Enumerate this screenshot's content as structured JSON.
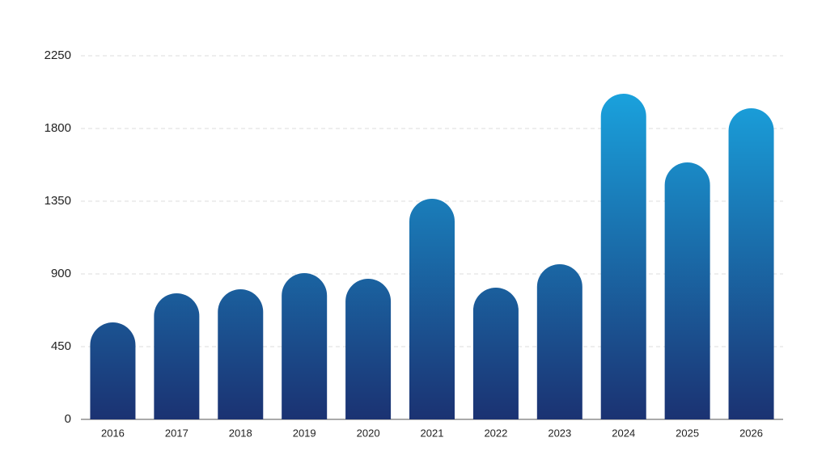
{
  "chart_data": {
    "type": "bar",
    "categories": [
      "2016",
      "2017",
      "2018",
      "2019",
      "2020",
      "2021",
      "2022",
      "2023",
      "2024",
      "2025",
      "2026"
    ],
    "values": [
      600,
      780,
      805,
      905,
      870,
      1365,
      815,
      960,
      2015,
      1590,
      1925
    ],
    "colors": [
      "#1b3272",
      "#1aa3de"
    ],
    "ylim": [
      0,
      2250
    ],
    "yticks": [
      0,
      450,
      900,
      1350,
      1800,
      2250
    ],
    "grid": true
  }
}
